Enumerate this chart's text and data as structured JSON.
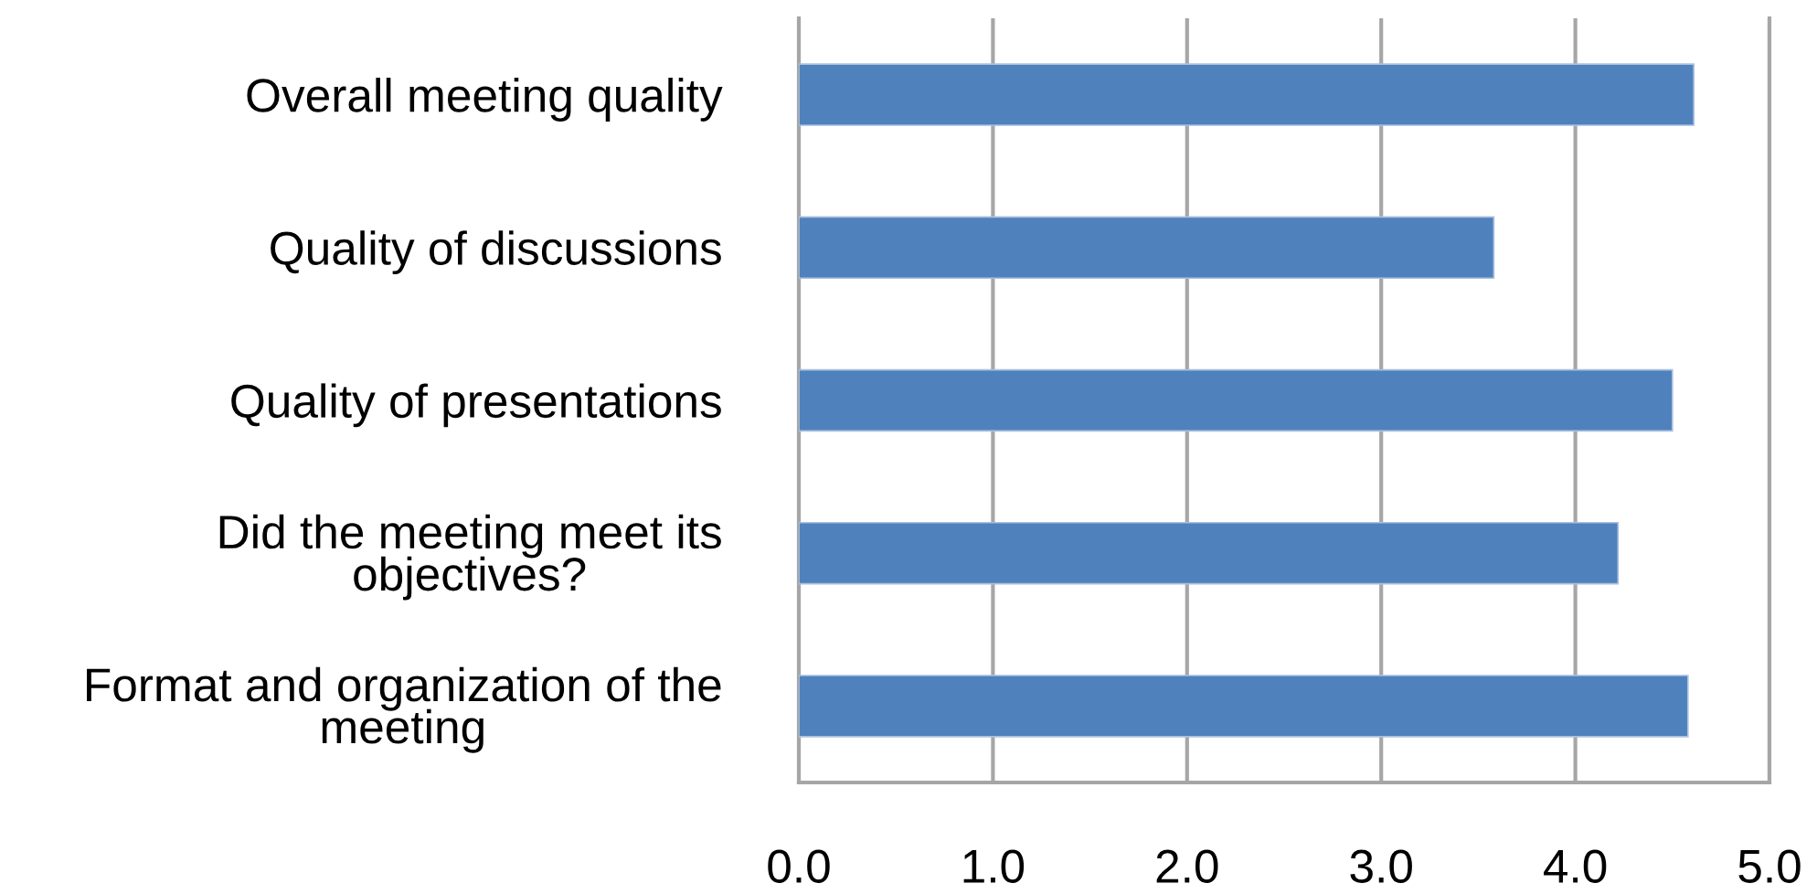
{
  "chart_data": {
    "type": "bar",
    "orientation": "horizontal",
    "categories": [
      "Overall meeting quality",
      "Quality of discussions",
      "Quality of presentations",
      "Did the meeting meet its objectives?",
      "Format and organization of the meeting"
    ],
    "values": [
      4.61,
      3.58,
      4.5,
      4.22,
      4.58
    ],
    "color": "#4f81bd",
    "xlim": [
      0,
      5
    ],
    "xticks": [
      {
        "value": 0,
        "label": "0.0"
      },
      {
        "value": 1,
        "label": "1.0"
      },
      {
        "value": 2,
        "label": "2.0"
      },
      {
        "value": 3,
        "label": "3.0"
      },
      {
        "value": 4,
        "label": "4.0"
      },
      {
        "value": 5,
        "label": "5.0"
      }
    ],
    "grid": "x"
  }
}
